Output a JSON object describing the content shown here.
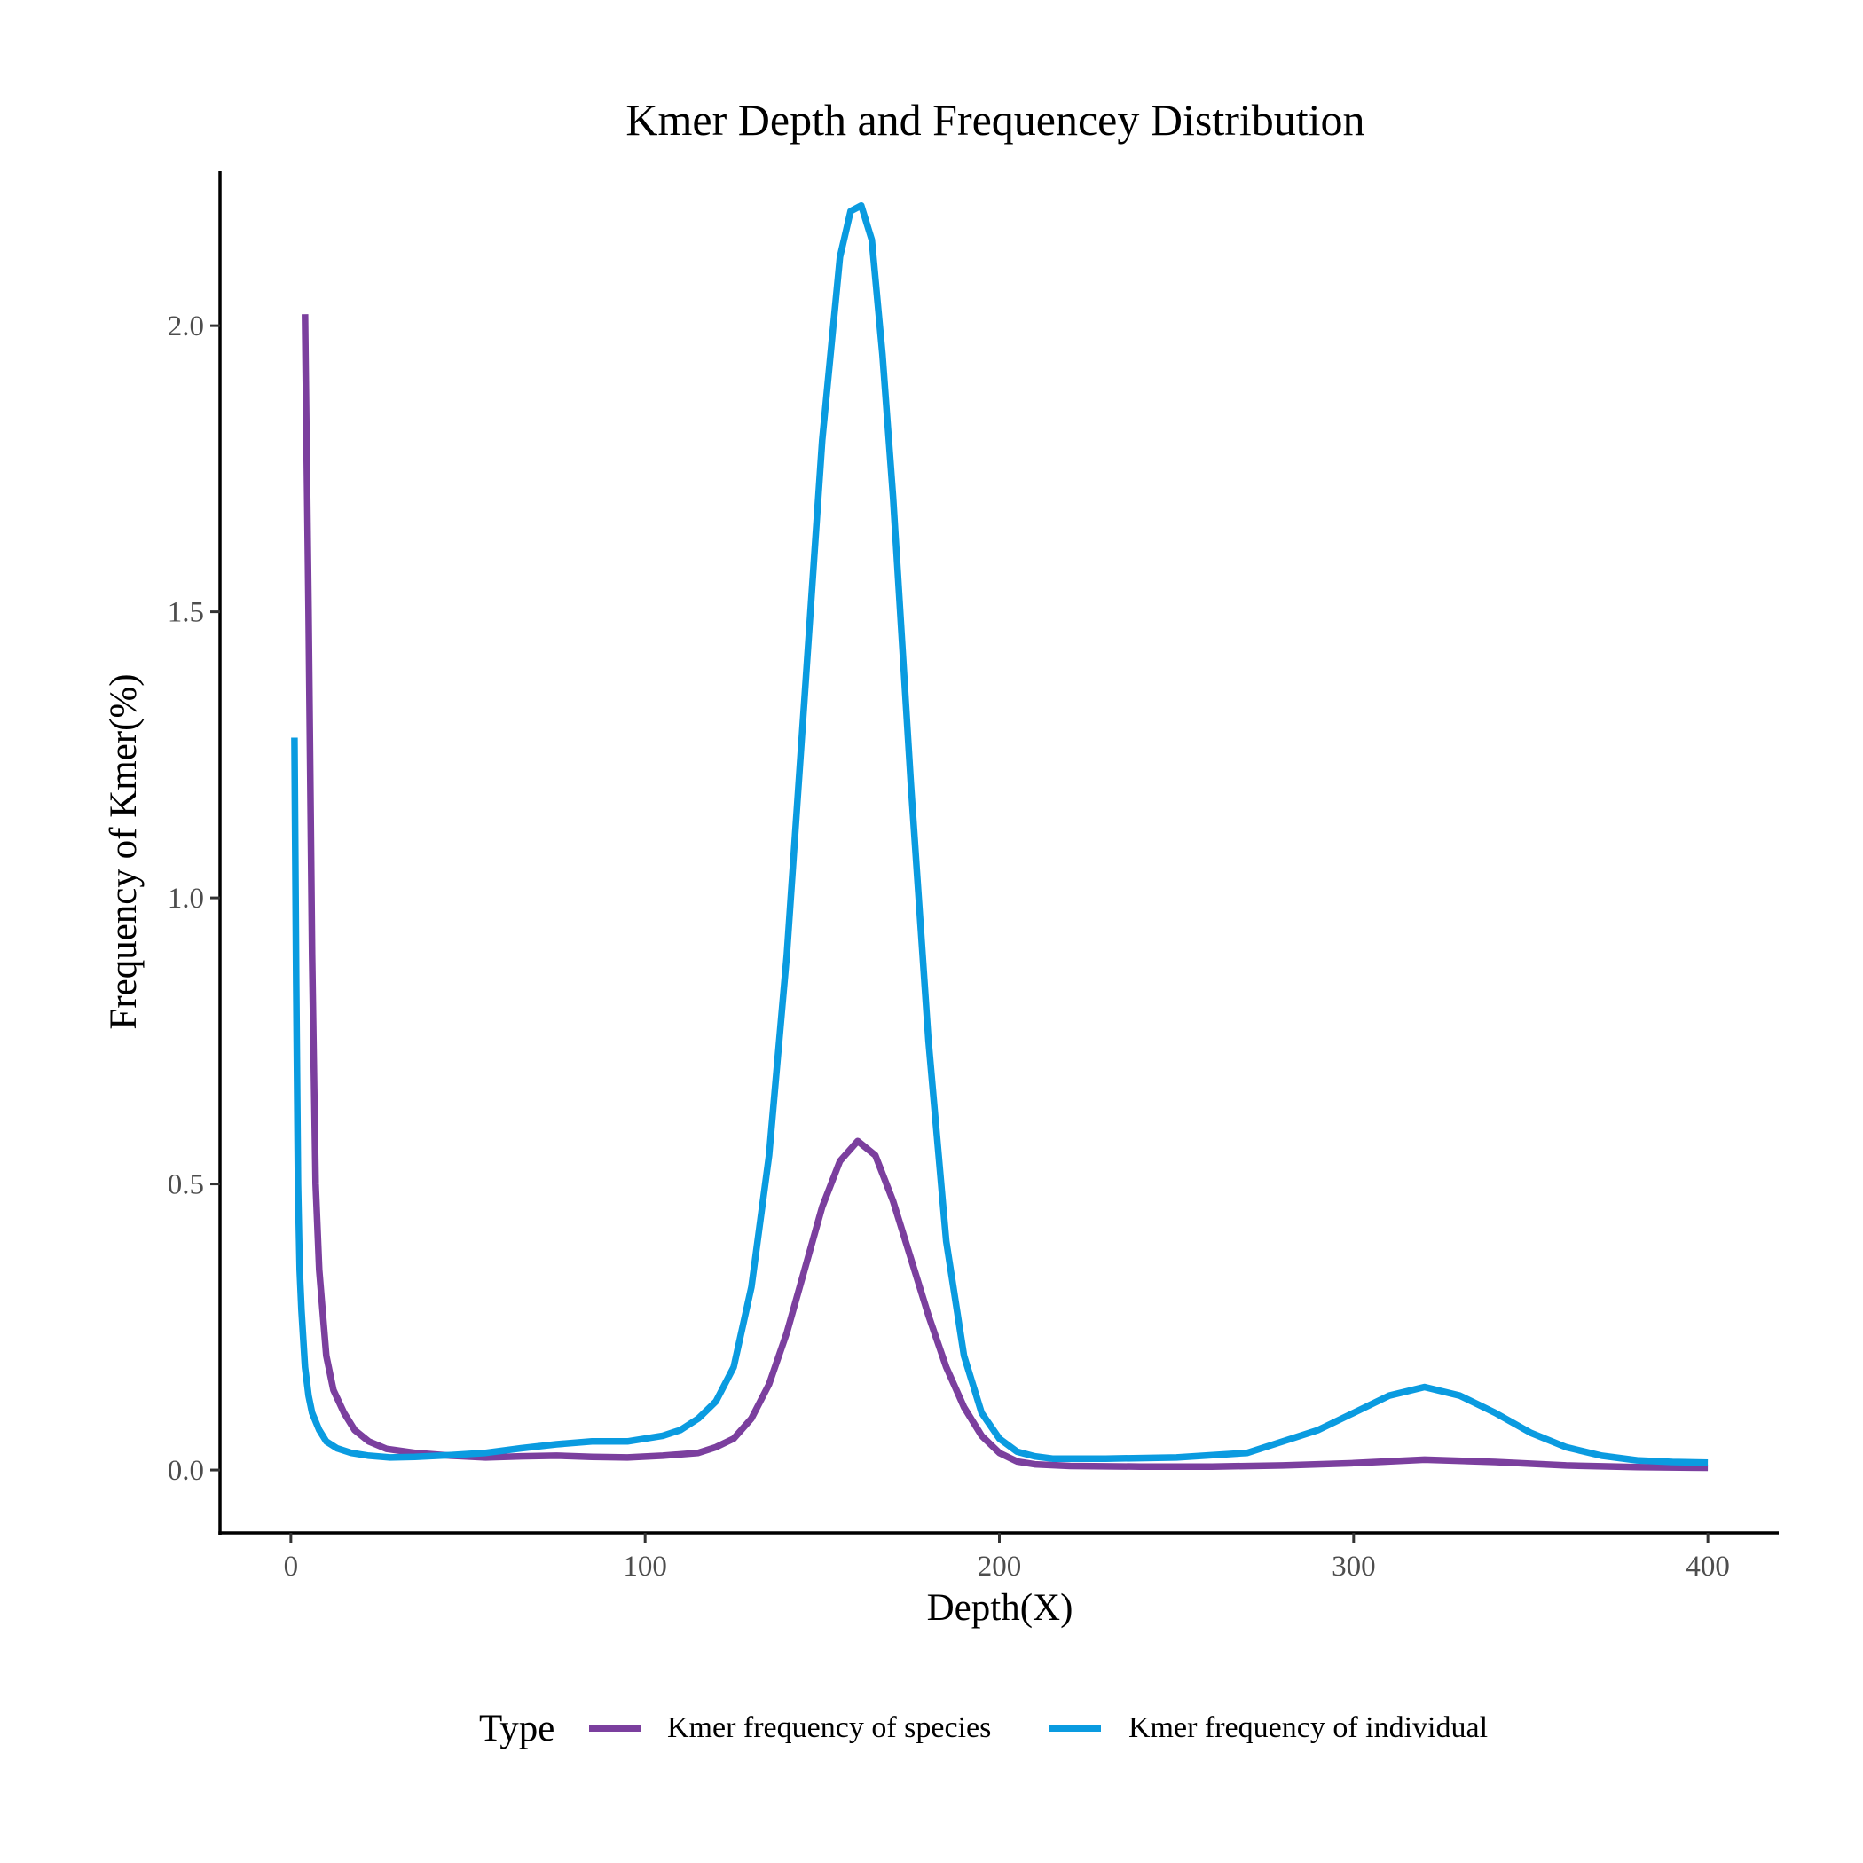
{
  "chart_data": {
    "type": "line",
    "title": "Kmer Depth and Frequencey Distribution",
    "xlabel": "Depth(X)",
    "ylabel": "Frequency of Kmer(%)",
    "xlim": [
      -20,
      420
    ],
    "ylim": [
      -0.11,
      2.27
    ],
    "xticks": [
      0,
      100,
      200,
      300,
      400
    ],
    "yticks": [
      0.0,
      0.5,
      1.0,
      1.5,
      2.0
    ],
    "xtick_labels": [
      "0",
      "100",
      "200",
      "300",
      "400"
    ],
    "ytick_labels": [
      "0.0",
      "0.5",
      "1.0",
      "1.5",
      "2.0"
    ],
    "grid": false,
    "legend": {
      "title": "Type",
      "position": "bottom"
    },
    "series": [
      {
        "name": "Kmer frequency of species",
        "color": "#7B3F9E",
        "x": [
          4,
          5,
          6,
          7,
          8,
          10,
          12,
          15,
          18,
          22,
          27,
          35,
          45,
          55,
          65,
          75,
          85,
          95,
          105,
          115,
          120,
          125,
          130,
          135,
          140,
          145,
          150,
          155,
          160,
          165,
          170,
          175,
          180,
          185,
          190,
          195,
          200,
          205,
          210,
          220,
          240,
          260,
          280,
          300,
          320,
          340,
          360,
          380,
          400
        ],
        "y": [
          2.02,
          1.5,
          0.9,
          0.5,
          0.35,
          0.2,
          0.14,
          0.1,
          0.07,
          0.05,
          0.037,
          0.03,
          0.025,
          0.022,
          0.024,
          0.025,
          0.023,
          0.022,
          0.025,
          0.03,
          0.04,
          0.055,
          0.09,
          0.15,
          0.24,
          0.35,
          0.46,
          0.54,
          0.575,
          0.55,
          0.47,
          0.37,
          0.27,
          0.18,
          0.11,
          0.06,
          0.03,
          0.015,
          0.01,
          0.007,
          0.006,
          0.006,
          0.008,
          0.012,
          0.018,
          0.014,
          0.008,
          0.005,
          0.004
        ]
      },
      {
        "name": "Kmer frequency of individual",
        "color": "#0A9BE0",
        "x": [
          1,
          1.5,
          2,
          2.5,
          3,
          4,
          5,
          6,
          8,
          10,
          13,
          17,
          22,
          28,
          35,
          45,
          55,
          65,
          75,
          85,
          95,
          105,
          110,
          115,
          120,
          125,
          130,
          135,
          140,
          145,
          150,
          155,
          158,
          161,
          164,
          167,
          170,
          175,
          180,
          185,
          190,
          195,
          200,
          205,
          210,
          215,
          220,
          230,
          250,
          270,
          290,
          300,
          310,
          320,
          330,
          340,
          350,
          360,
          370,
          380,
          390,
          400
        ],
        "y": [
          1.28,
          0.85,
          0.5,
          0.35,
          0.28,
          0.18,
          0.13,
          0.1,
          0.07,
          0.05,
          0.038,
          0.03,
          0.025,
          0.022,
          0.023,
          0.026,
          0.03,
          0.038,
          0.045,
          0.05,
          0.05,
          0.06,
          0.07,
          0.09,
          0.12,
          0.18,
          0.32,
          0.55,
          0.9,
          1.35,
          1.8,
          2.12,
          2.2,
          2.21,
          2.15,
          1.95,
          1.7,
          1.2,
          0.75,
          0.4,
          0.2,
          0.1,
          0.055,
          0.032,
          0.024,
          0.02,
          0.02,
          0.02,
          0.022,
          0.03,
          0.07,
          0.1,
          0.13,
          0.145,
          0.13,
          0.1,
          0.065,
          0.04,
          0.025,
          0.017,
          0.014,
          0.013
        ]
      }
    ]
  }
}
